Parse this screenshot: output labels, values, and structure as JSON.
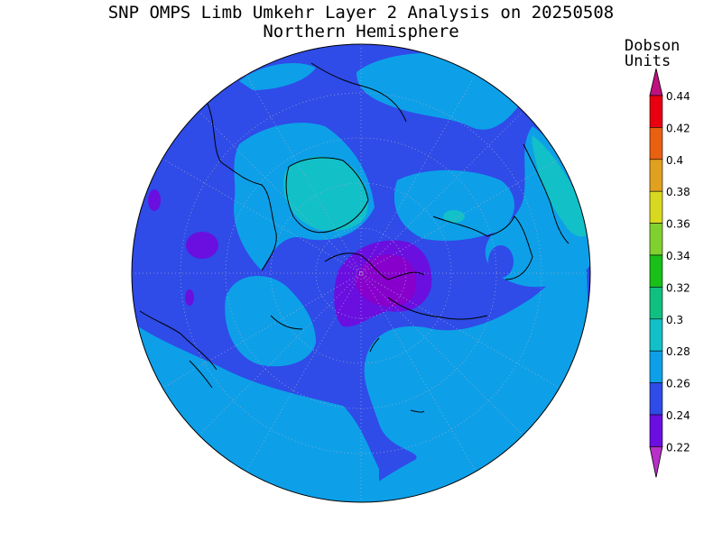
{
  "title": "SNP OMPS Limb Umkehr Layer 2 Analysis on 20250508",
  "subtitle": "Northern Hemisphere",
  "units_line1": "Dobson",
  "units_line2": "Units",
  "colorbar": {
    "levels": [
      "0.22",
      "0.24",
      "0.26",
      "0.28",
      "0.3",
      "0.32",
      "0.34",
      "0.36",
      "0.38",
      "0.4",
      "0.42",
      "0.44"
    ],
    "colors": [
      "#8800cc",
      "#6a0fe0",
      "#2f4be8",
      "#0da0e8",
      "#12c0c8",
      "#10c080",
      "#18c018",
      "#80d030",
      "#d8d820",
      "#e0a020",
      "#e86010",
      "#e80010"
    ],
    "below_color": "#b830c8",
    "above_color": "#c01080"
  },
  "map": {
    "projection": "north polar stereographic",
    "hemisphere": "Northern",
    "background_level_color": "#2f4be8",
    "regions": [
      {
        "name": "region-0.28-north-atlantic",
        "color": "#0da0e8"
      },
      {
        "name": "region-0.28-pacific",
        "color": "#0da0e8"
      },
      {
        "name": "region-0.30-greenland",
        "color": "#12c0c8"
      },
      {
        "name": "region-0.30-east",
        "color": "#12c0c8"
      },
      {
        "name": "region-0.22-pole",
        "color": "#8800cc"
      }
    ]
  }
}
